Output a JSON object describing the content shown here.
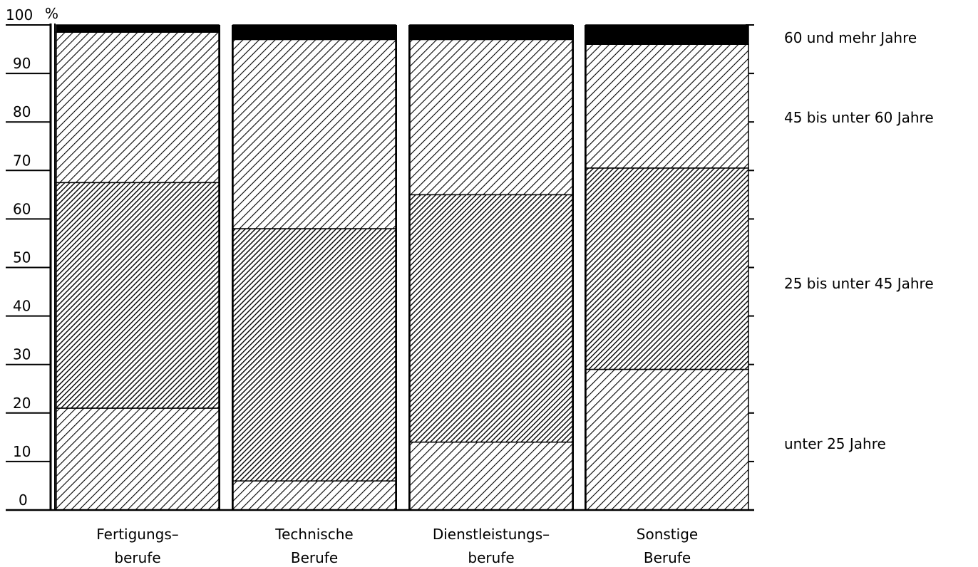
{
  "chart_data": {
    "type": "bar",
    "stacked": true,
    "ylabel": "%",
    "ylim": [
      0,
      100
    ],
    "yticks": [
      "0",
      "10",
      "20",
      "30",
      "40",
      "50",
      "60",
      "70",
      "80",
      "90",
      "100"
    ],
    "categories": [
      [
        "Fertigungs–",
        "berufe"
      ],
      [
        "Technische",
        "Berufe"
      ],
      [
        "Dienstleistungs–",
        "berufe"
      ],
      [
        "Sonstige",
        "Berufe"
      ]
    ],
    "series": [
      {
        "name": "unter 25 Jahre",
        "pattern": "hatch-light",
        "values": [
          21,
          6,
          14,
          29
        ]
      },
      {
        "name": "25 bis unter 45 Jahre",
        "pattern": "hatch-dense",
        "values": [
          46.5,
          52,
          51,
          41.5
        ]
      },
      {
        "name": "45 bis unter 60 Jahre",
        "pattern": "hatch-light",
        "values": [
          31,
          39,
          32,
          25.5
        ]
      },
      {
        "name": "60 und mehr Jahre",
        "pattern": "solid-black",
        "values": [
          1.5,
          3,
          3,
          4
        ]
      }
    ],
    "grid": false,
    "legend_position": "right"
  }
}
